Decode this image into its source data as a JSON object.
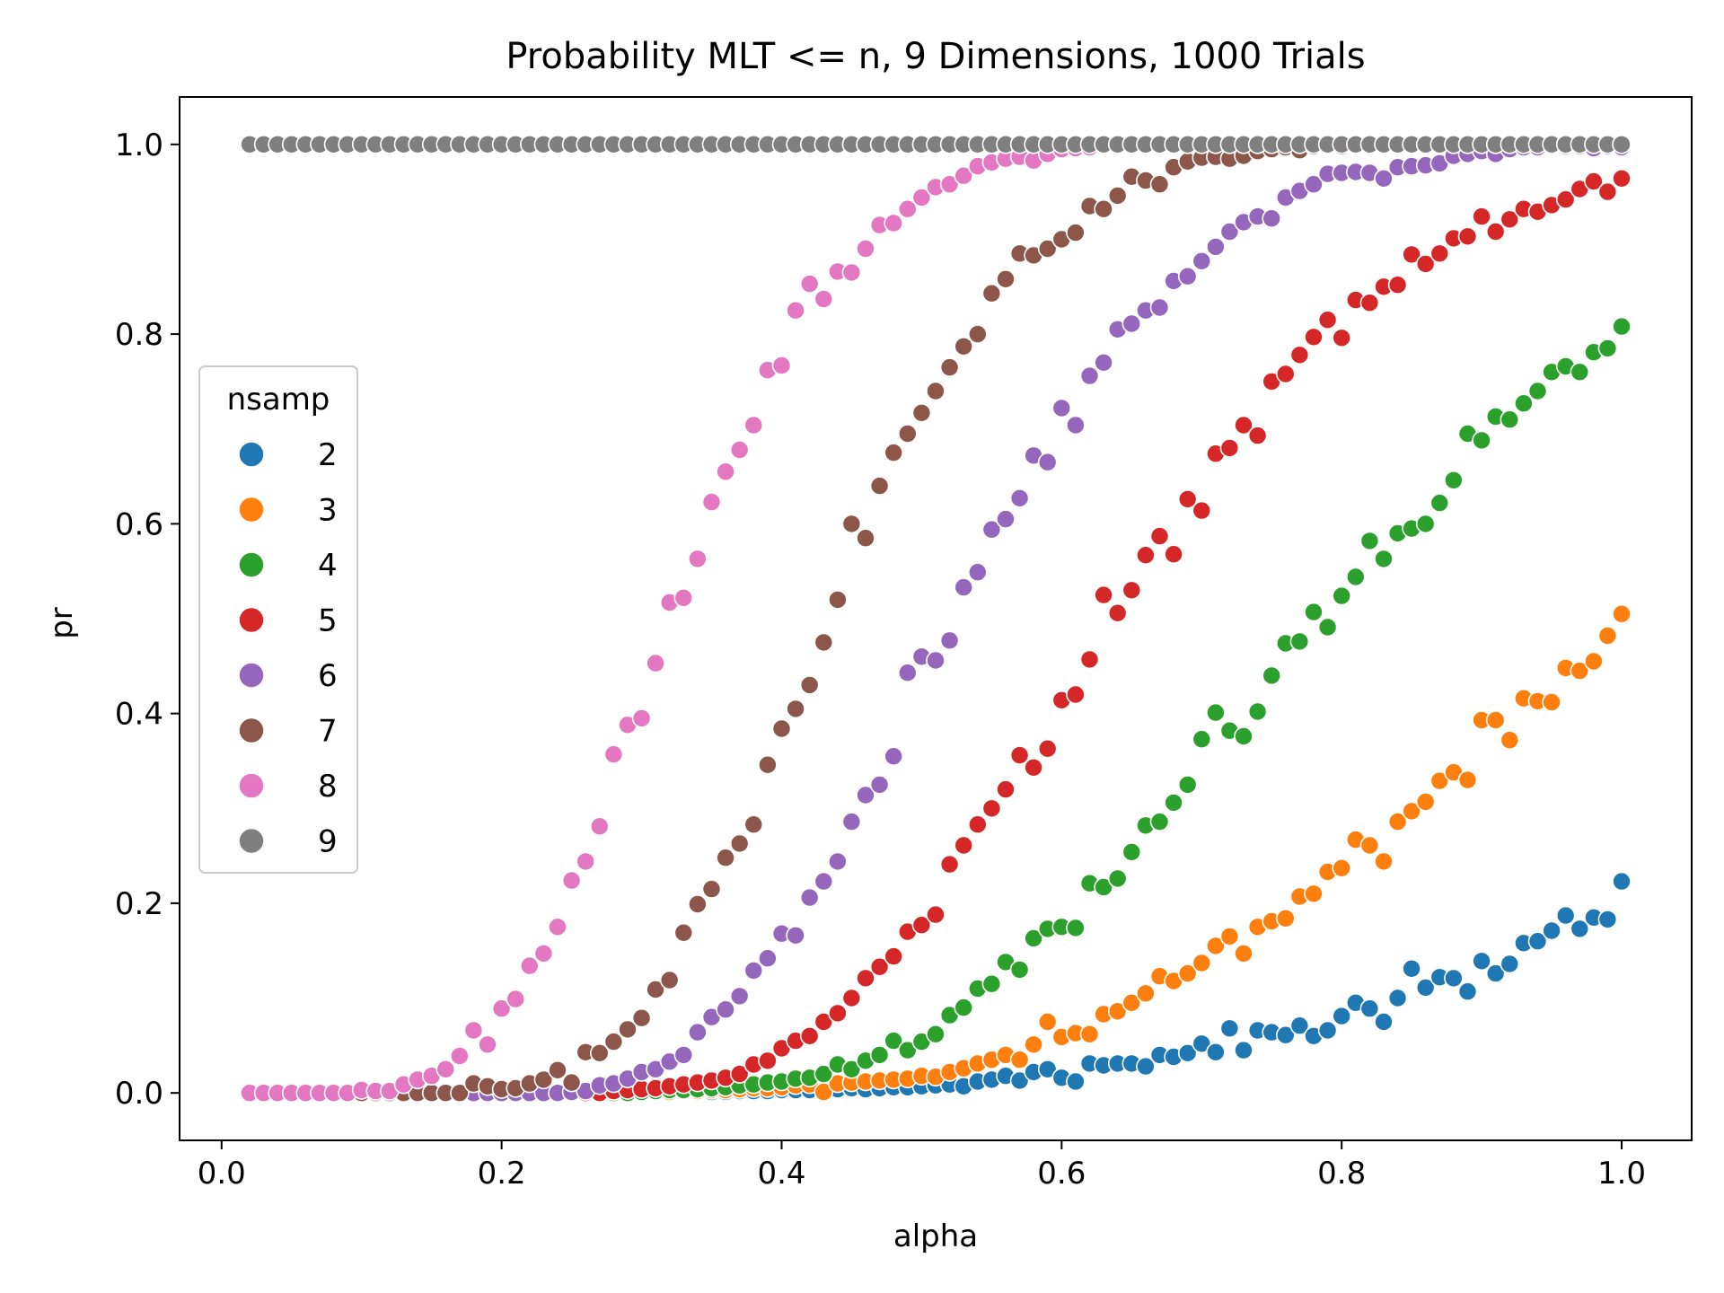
{
  "chart_data": {
    "type": "scatter",
    "title": "Probability MLT <= n, 9 Dimensions, 1000 Trials",
    "xlabel": "alpha",
    "ylabel": "pr",
    "xlim": [
      -0.03,
      1.05
    ],
    "ylim": [
      -0.05,
      1.05
    ],
    "xticks": [
      0.0,
      0.2,
      0.4,
      0.6,
      0.8,
      1.0
    ],
    "xtick_labels": [
      "0.0",
      "0.2",
      "0.4",
      "0.6",
      "0.8",
      "1.0"
    ],
    "yticks": [
      0.0,
      0.2,
      0.4,
      0.6,
      0.8,
      1.0
    ],
    "ytick_labels": [
      "0.0",
      "0.2",
      "0.4",
      "0.6",
      "0.8",
      "1.0"
    ],
    "grid": false,
    "legend": {
      "title": "nsamp",
      "placement": "center-left"
    },
    "x": [
      0.02,
      0.03,
      0.04,
      0.05,
      0.06,
      0.07,
      0.08,
      0.09,
      0.1,
      0.11,
      0.12,
      0.13,
      0.14,
      0.15,
      0.16,
      0.17,
      0.18,
      0.19,
      0.2,
      0.21,
      0.22,
      0.23,
      0.24,
      0.25,
      0.26,
      0.27,
      0.28,
      0.29,
      0.3,
      0.31,
      0.32,
      0.33,
      0.34,
      0.35,
      0.36,
      0.37,
      0.38,
      0.39,
      0.4,
      0.41,
      0.42,
      0.43,
      0.44,
      0.45,
      0.46,
      0.47,
      0.48,
      0.49,
      0.5,
      0.51,
      0.52,
      0.53,
      0.54,
      0.55,
      0.56,
      0.57,
      0.58,
      0.59,
      0.6,
      0.61,
      0.62,
      0.63,
      0.64,
      0.65,
      0.66,
      0.67,
      0.68,
      0.69,
      0.7,
      0.71,
      0.72,
      0.73,
      0.74,
      0.75,
      0.76,
      0.77,
      0.78,
      0.79,
      0.8,
      0.81,
      0.82,
      0.83,
      0.84,
      0.85,
      0.86,
      0.87,
      0.88,
      0.89,
      0.9,
      0.91,
      0.92,
      0.93,
      0.94,
      0.95,
      0.96,
      0.97,
      0.98,
      0.99,
      1.0
    ],
    "series": [
      {
        "name": "2",
        "color": "#1f77b4",
        "values": [
          0,
          0,
          0,
          0,
          0,
          0,
          0,
          0,
          0,
          0,
          0,
          0,
          0,
          0,
          0,
          0,
          0,
          0,
          0,
          0,
          0,
          0,
          0,
          0,
          0,
          0,
          0,
          0,
          0,
          0,
          0.001,
          0.001,
          0.001,
          0.001,
          0.001,
          0.002,
          0.002,
          0.002,
          0.003,
          0.003,
          0.003,
          0.004,
          0.004,
          0.005,
          0.004,
          0.005,
          0.006,
          0.006,
          0.007,
          0.008,
          0.009,
          0.007,
          0.012,
          0.014,
          0.018,
          0.013,
          0.022,
          0.025,
          0.016,
          0.012,
          0.031,
          0.029,
          0.031,
          0.031,
          0.028,
          0.04,
          0.038,
          0.042,
          0.052,
          0.043,
          0.068,
          0.045,
          0.066,
          0.064,
          0.061,
          0.071,
          0.06,
          0.066,
          0.081,
          0.095,
          0.089,
          0.075,
          0.1,
          0.131,
          0.111,
          0.122,
          0.121,
          0.107,
          0.139,
          0.126,
          0.136,
          0.158,
          0.16,
          0.171,
          0.187,
          0.173,
          0.185,
          0.183,
          0.223
        ]
      },
      {
        "name": "3",
        "color": "#ff7f0e",
        "values": [
          0,
          0,
          0,
          0,
          0,
          0,
          0,
          0,
          0,
          0,
          0,
          0,
          0,
          0,
          0,
          0,
          0,
          0,
          0,
          0,
          0,
          0,
          0,
          0,
          0,
          0,
          0,
          0,
          0,
          0.001,
          0.001,
          0.002,
          0.002,
          0.003,
          0.003,
          0.004,
          0.005,
          0.005,
          0.006,
          0.008,
          0.009,
          0.001,
          0.01,
          0.011,
          0.012,
          0.013,
          0.014,
          0.015,
          0.018,
          0.017,
          0.022,
          0.026,
          0.031,
          0.035,
          0.04,
          0.035,
          0.051,
          0.075,
          0.059,
          0.063,
          0.062,
          0.083,
          0.086,
          0.095,
          0.105,
          0.123,
          0.118,
          0.126,
          0.137,
          0.155,
          0.165,
          0.147,
          0.175,
          0.181,
          0.184,
          0.207,
          0.21,
          0.233,
          0.237,
          0.267,
          0.261,
          0.244,
          0.286,
          0.297,
          0.307,
          0.329,
          0.338,
          0.33,
          0.393,
          0.393,
          0.372,
          0.416,
          0.413,
          0.412,
          0.448,
          0.445,
          0.455,
          0.482,
          0.505
        ]
      },
      {
        "name": "4",
        "color": "#2ca02c",
        "values": [
          0,
          0,
          0,
          0,
          0,
          0,
          0,
          0,
          0,
          0,
          0,
          0,
          0,
          0,
          0,
          0,
          0,
          0,
          0,
          0,
          0,
          0,
          0,
          0,
          0,
          0,
          0,
          0,
          0.001,
          0.002,
          0.003,
          0.003,
          0.004,
          0.005,
          0.006,
          0.008,
          0.009,
          0.011,
          0.012,
          0.015,
          0.016,
          0.02,
          0.03,
          0.025,
          0.034,
          0.04,
          0.055,
          0.045,
          0.054,
          0.062,
          0.082,
          0.09,
          0.11,
          0.115,
          0.138,
          0.13,
          0.163,
          0.173,
          0.175,
          0.174,
          0.221,
          0.217,
          0.226,
          0.254,
          0.282,
          0.286,
          0.306,
          0.325,
          0.373,
          0.401,
          0.382,
          0.376,
          0.402,
          0.44,
          0.474,
          0.476,
          0.507,
          0.491,
          0.524,
          0.544,
          0.582,
          0.563,
          0.59,
          0.595,
          0.6,
          0.622,
          0.646,
          0.695,
          0.688,
          0.713,
          0.71,
          0.727,
          0.74,
          0.76,
          0.766,
          0.76,
          0.781,
          0.785,
          0.808
        ]
      },
      {
        "name": "5",
        "color": "#d62728",
        "values": [
          0,
          0,
          0,
          0,
          0,
          0,
          0,
          0,
          0,
          0,
          0,
          0,
          0,
          0,
          0,
          0,
          0,
          0,
          0,
          0,
          0,
          0,
          0,
          0,
          0,
          0,
          0.002,
          0.003,
          0.004,
          0.005,
          0.007,
          0.009,
          0.011,
          0.013,
          0.016,
          0.02,
          0.03,
          0.034,
          0.047,
          0.055,
          0.06,
          0.075,
          0.084,
          0.1,
          0.121,
          0.133,
          0.144,
          0.17,
          0.177,
          0.188,
          0.241,
          0.261,
          0.283,
          0.3,
          0.32,
          0.356,
          0.343,
          0.363,
          0.414,
          0.42,
          0.457,
          0.525,
          0.506,
          0.53,
          0.567,
          0.587,
          0.568,
          0.626,
          0.614,
          0.674,
          0.68,
          0.704,
          0.693,
          0.75,
          0.758,
          0.778,
          0.797,
          0.815,
          0.796,
          0.836,
          0.833,
          0.85,
          0.852,
          0.884,
          0.874,
          0.885,
          0.901,
          0.903,
          0.924,
          0.908,
          0.921,
          0.932,
          0.929,
          0.936,
          0.942,
          0.953,
          0.961,
          0.95,
          0.964
        ]
      },
      {
        "name": "6",
        "color": "#9467bd",
        "values": [
          0,
          0,
          0,
          0,
          0,
          0,
          0,
          0,
          0,
          0,
          0,
          0,
          0,
          0,
          0,
          0,
          0,
          0,
          0,
          0,
          0,
          0,
          0,
          0.001,
          0.002,
          0.008,
          0.01,
          0.015,
          0.022,
          0.025,
          0.033,
          0.04,
          0.064,
          0.08,
          0.088,
          0.102,
          0.129,
          0.142,
          0.168,
          0.166,
          0.206,
          0.223,
          0.244,
          0.286,
          0.314,
          0.325,
          0.355,
          0.443,
          0.46,
          0.456,
          0.477,
          0.533,
          0.549,
          0.594,
          0.605,
          0.627,
          0.672,
          0.665,
          0.722,
          0.704,
          0.756,
          0.77,
          0.805,
          0.811,
          0.825,
          0.828,
          0.856,
          0.861,
          0.877,
          0.892,
          0.908,
          0.918,
          0.924,
          0.922,
          0.944,
          0.951,
          0.958,
          0.969,
          0.97,
          0.971,
          0.97,
          0.964,
          0.976,
          0.977,
          0.978,
          0.98,
          0.988,
          0.99,
          0.993,
          0.99,
          0.995,
          0.997,
          0.997,
          0.999,
          0.998,
          0.998,
          0.996,
          0.998,
          0.997
        ]
      },
      {
        "name": "7",
        "color": "#8c564b",
        "values": [
          0,
          0,
          0,
          0,
          0,
          0,
          0,
          0,
          0,
          0,
          0,
          0,
          0,
          0,
          0,
          0,
          0.01,
          0.007,
          0.004,
          0.005,
          0.01,
          0.014,
          0.024,
          0.011,
          0.043,
          0.042,
          0.054,
          0.067,
          0.079,
          0.109,
          0.119,
          0.169,
          0.199,
          0.215,
          0.248,
          0.263,
          0.283,
          0.346,
          0.384,
          0.405,
          0.43,
          0.475,
          0.52,
          0.6,
          0.585,
          0.64,
          0.675,
          0.695,
          0.717,
          0.74,
          0.765,
          0.787,
          0.8,
          0.843,
          0.858,
          0.885,
          0.883,
          0.89,
          0.9,
          0.907,
          0.935,
          0.932,
          0.946,
          0.966,
          0.962,
          0.958,
          0.976,
          0.982,
          0.986,
          0.987,
          0.985,
          0.988,
          0.993,
          0.995,
          0.997,
          0.994,
          0.998,
          0.999,
          0.998,
          1.0,
          1.0,
          1.0,
          1.0,
          1.0,
          1.0,
          1.0,
          1.0,
          1.0,
          1.0,
          1.0,
          1.0,
          1.0,
          1.0,
          1.0,
          1.0,
          1.0,
          1.0,
          1.0,
          1.0
        ]
      },
      {
        "name": "8",
        "color": "#e377c2",
        "values": [
          0,
          0,
          0,
          0,
          0,
          0,
          0,
          0,
          0.003,
          0.002,
          0.002,
          0.009,
          0.014,
          0.018,
          0.025,
          0.039,
          0.066,
          0.051,
          0.089,
          0.099,
          0.134,
          0.147,
          0.175,
          0.224,
          0.244,
          0.281,
          0.357,
          0.388,
          0.395,
          0.453,
          0.517,
          0.522,
          0.563,
          0.623,
          0.655,
          0.678,
          0.704,
          0.762,
          0.767,
          0.825,
          0.853,
          0.837,
          0.866,
          0.865,
          0.89,
          0.915,
          0.917,
          0.932,
          0.944,
          0.955,
          0.958,
          0.967,
          0.977,
          0.981,
          0.985,
          0.987,
          0.983,
          0.99,
          0.995,
          0.996,
          0.997,
          0.999,
          0.999,
          1.0,
          1.0,
          1.0,
          1.0,
          1.0,
          1.0,
          1.0,
          1.0,
          1.0,
          1.0,
          1.0,
          1.0,
          1.0,
          1.0,
          1.0,
          1.0,
          1.0,
          1.0,
          1.0,
          1.0,
          1.0,
          1.0,
          1.0,
          1.0,
          1.0,
          1.0,
          1.0,
          1.0,
          1.0,
          1.0,
          1.0,
          1.0,
          1.0,
          1.0,
          1.0,
          1.0
        ]
      },
      {
        "name": "9",
        "color": "#7f7f7f",
        "values": [
          1.0,
          1.0,
          1.0,
          1.0,
          1.0,
          1.0,
          1.0,
          1.0,
          1.0,
          1.0,
          1.0,
          1.0,
          1.0,
          1.0,
          1.0,
          1.0,
          1.0,
          1.0,
          1.0,
          1.0,
          1.0,
          1.0,
          1.0,
          1.0,
          1.0,
          1.0,
          1.0,
          1.0,
          1.0,
          1.0,
          1.0,
          1.0,
          1.0,
          1.0,
          1.0,
          1.0,
          1.0,
          1.0,
          1.0,
          1.0,
          1.0,
          1.0,
          1.0,
          1.0,
          1.0,
          1.0,
          1.0,
          1.0,
          1.0,
          1.0,
          1.0,
          1.0,
          1.0,
          1.0,
          1.0,
          1.0,
          1.0,
          1.0,
          1.0,
          1.0,
          1.0,
          1.0,
          1.0,
          1.0,
          1.0,
          1.0,
          1.0,
          1.0,
          1.0,
          1.0,
          1.0,
          1.0,
          1.0,
          1.0,
          1.0,
          1.0,
          1.0,
          1.0,
          1.0,
          1.0,
          1.0,
          1.0,
          1.0,
          1.0,
          1.0,
          1.0,
          1.0,
          1.0,
          1.0,
          1.0,
          1.0,
          1.0,
          1.0,
          1.0,
          1.0,
          1.0,
          1.0,
          1.0,
          1.0
        ]
      }
    ]
  }
}
